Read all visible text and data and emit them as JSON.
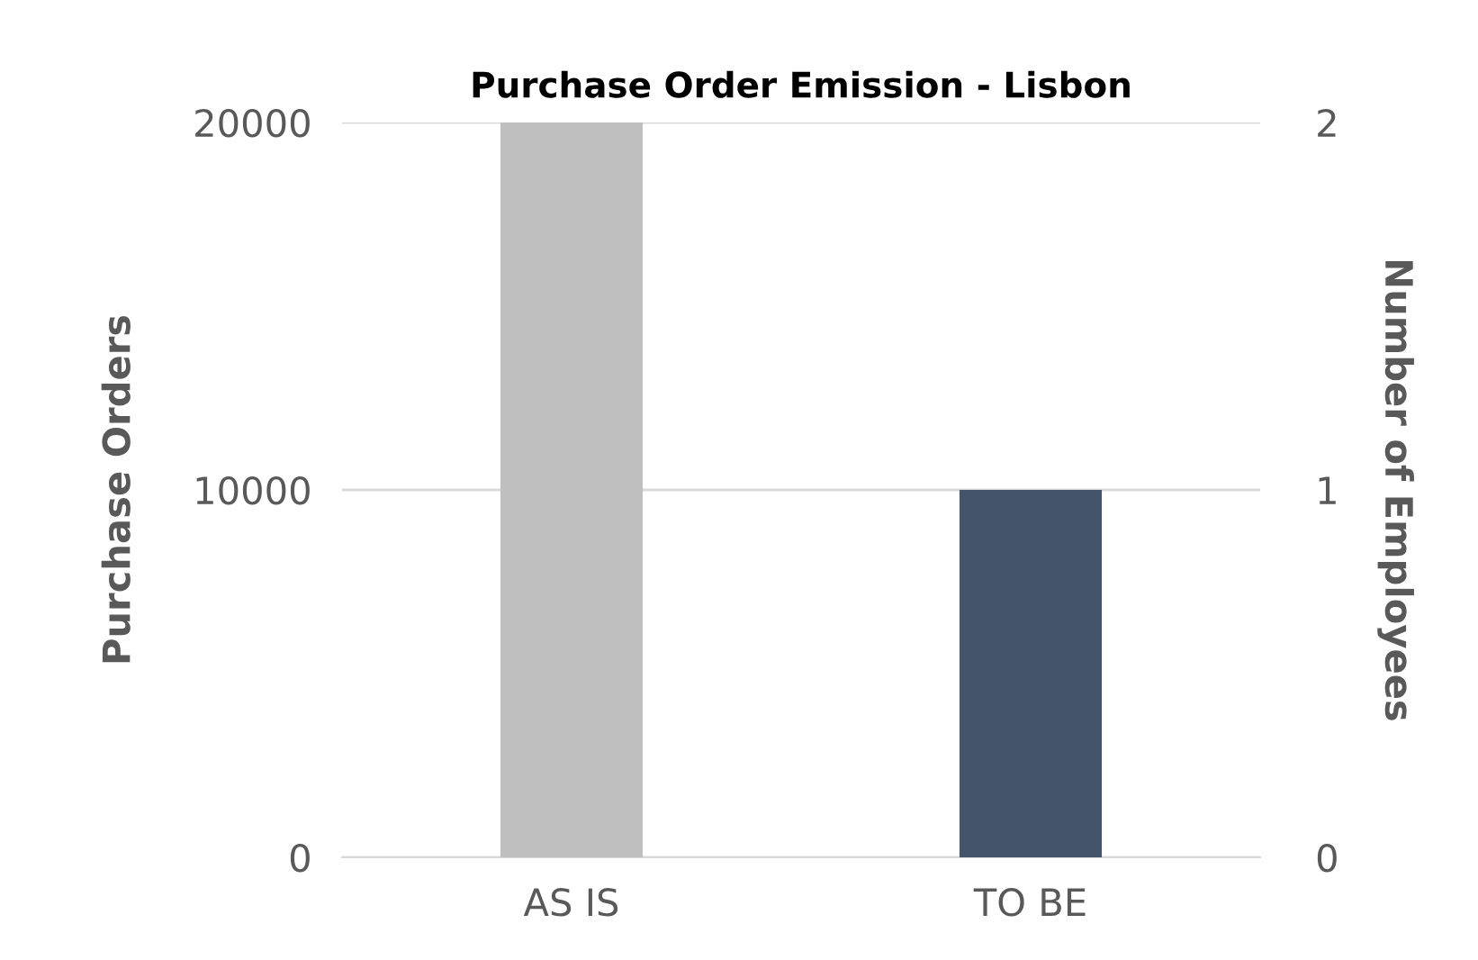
{
  "chart_data": {
    "type": "bar",
    "title": "Purchase Order Emission - Lisbon",
    "categories": [
      "AS IS",
      "TO BE"
    ],
    "values": [
      20000,
      10000
    ],
    "colors": [
      "#bfbfbf",
      "#44546a"
    ],
    "ylabel": "Purchase Orders",
    "y2label": "Number of Employees",
    "ylim": [
      0,
      20000
    ],
    "yticks": [
      0,
      10000,
      20000
    ],
    "y2lim": [
      0,
      2
    ],
    "y2ticks": [
      0,
      1,
      2
    ],
    "grid": "y",
    "legend": false
  }
}
